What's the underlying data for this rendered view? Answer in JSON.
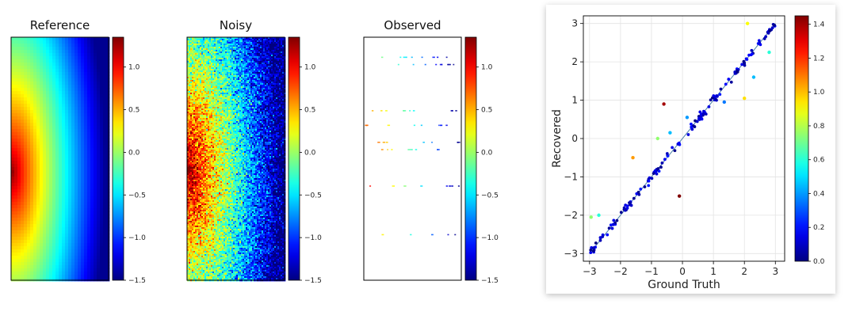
{
  "chart_data": [
    {
      "type": "heatmap",
      "title": "Reference",
      "colormap": "jet",
      "colorbar": {
        "vmin": -1.5,
        "vmax": 1.35,
        "ticks": [
          "1.0",
          "0.5",
          "0.0",
          "−0.5",
          "−1.0",
          "−1.5"
        ],
        "tick_values": [
          1.0,
          0.5,
          0.0,
          -0.5,
          -1.0,
          -1.5
        ]
      },
      "field": {
        "hotspot": "left edge, 55% down",
        "peak_value": 1.3,
        "min_value": -1.45,
        "noise": 0.0
      }
    },
    {
      "type": "heatmap",
      "title": "Noisy",
      "colormap": "jet",
      "colorbar": {
        "vmin": -1.5,
        "vmax": 1.35,
        "ticks": [
          "1.0",
          "0.5",
          "0.0",
          "−0.5",
          "−1.0",
          "−1.5"
        ],
        "tick_values": [
          1.0,
          0.5,
          0.0,
          -0.5,
          -1.0,
          -1.5
        ]
      },
      "field": {
        "hotspot": "left edge, 55% down",
        "peak_value": 1.3,
        "min_value": -1.45,
        "noise": 0.25
      }
    },
    {
      "type": "heatmap",
      "title": "Observed",
      "colormap": "jet",
      "colorbar": {
        "vmin": -1.5,
        "vmax": 1.35,
        "ticks": [
          "1.0",
          "0.5",
          "0.0",
          "−0.5",
          "−1.0",
          "−1.5"
        ],
        "tick_values": [
          1.0,
          0.5,
          0.0,
          -0.5,
          -1.0,
          -1.5
        ]
      },
      "field": {
        "observed_row_fractions": [
          0.08,
          0.11,
          0.3,
          0.36,
          0.43,
          0.46,
          0.61,
          0.81
        ]
      }
    },
    {
      "type": "scatter",
      "title": "",
      "xlabel": "Ground Truth",
      "ylabel": "Recovered",
      "xlim": [
        -3.2,
        3.3
      ],
      "ylim": [
        -3.2,
        3.2
      ],
      "xticks": [
        "−3",
        "−2",
        "−1",
        "0",
        "1",
        "2",
        "3"
      ],
      "xtick_values": [
        -3,
        -2,
        -1,
        0,
        1,
        2,
        3
      ],
      "yticks": [
        "−3",
        "−2",
        "−1",
        "0",
        "1",
        "2",
        "3"
      ],
      "ytick_values": [
        -3,
        -2,
        -1,
        0,
        1,
        2,
        3
      ],
      "grid": true,
      "identity_line": true,
      "colormap": "jet",
      "colorbar": {
        "vmin": 0.0,
        "vmax": 1.45,
        "ticks": [
          "1.4",
          "1.2",
          "1.0",
          "0.8",
          "0.6",
          "0.4",
          "0.2",
          "0.0"
        ],
        "tick_values": [
          1.4,
          1.2,
          1.0,
          0.8,
          0.6,
          0.4,
          0.2,
          0.0
        ]
      },
      "n_points_on_line": 150,
      "outliers": [
        {
          "x": -0.6,
          "y": 0.9,
          "c": 1.4
        },
        {
          "x": -0.1,
          "y": -1.5,
          "c": 1.45
        },
        {
          "x": -1.6,
          "y": -0.5,
          "c": 1.05
        },
        {
          "x": -0.8,
          "y": 0.0,
          "c": 0.75
        },
        {
          "x": 2.0,
          "y": 1.05,
          "c": 0.95
        },
        {
          "x": 2.1,
          "y": 3.0,
          "c": 0.9
        },
        {
          "x": 2.3,
          "y": 1.6,
          "c": 0.45
        },
        {
          "x": 2.8,
          "y": 2.25,
          "c": 0.6
        },
        {
          "x": -0.4,
          "y": 0.15,
          "c": 0.45
        },
        {
          "x": 0.15,
          "y": 0.55,
          "c": 0.4
        },
        {
          "x": 1.35,
          "y": 0.95,
          "c": 0.35
        },
        {
          "x": -2.95,
          "y": -2.05,
          "c": 0.75
        },
        {
          "x": -2.7,
          "y": -2.0,
          "c": 0.6
        }
      ]
    }
  ]
}
